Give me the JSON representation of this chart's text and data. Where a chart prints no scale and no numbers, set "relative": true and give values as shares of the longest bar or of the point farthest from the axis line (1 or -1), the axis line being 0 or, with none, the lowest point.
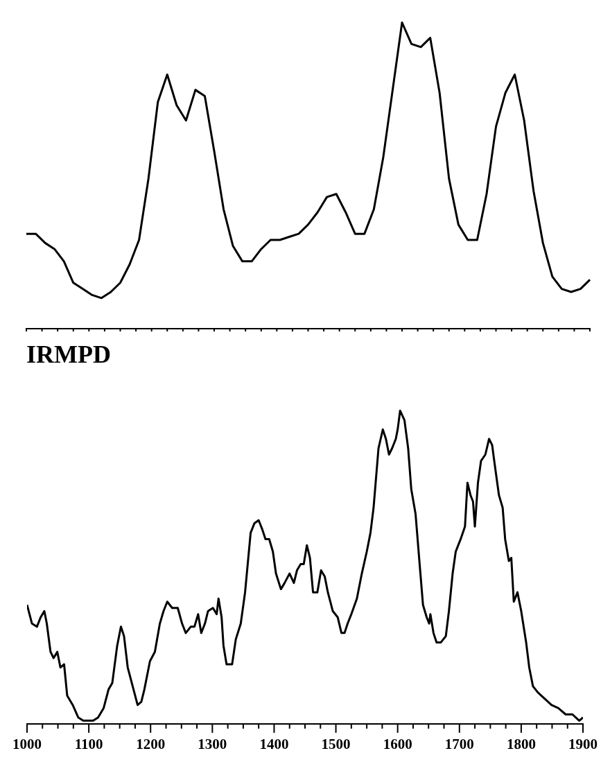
{
  "chart_data": [
    {
      "type": "line",
      "relative": true,
      "tick_labels": false,
      "categories": [
        null,
        null,
        null,
        null,
        null,
        null,
        null,
        null,
        null,
        null,
        null,
        null,
        null,
        null,
        null,
        null,
        null,
        null,
        null,
        null,
        null,
        null,
        null,
        null,
        null,
        null,
        null,
        null,
        null,
        null,
        null,
        null,
        null,
        null,
        null,
        null,
        null,
        null,
        null,
        null,
        null,
        null,
        null,
        null,
        null,
        null,
        null,
        null,
        null,
        null,
        null,
        null,
        null,
        null,
        null,
        null,
        null,
        null,
        null,
        null,
        null
      ],
      "series": [
        {
          "color": "#000000",
          "values": [
            0.31,
            0.31,
            0.28,
            0.26,
            0.22,
            0.15,
            0.13,
            0.11,
            0.1,
            0.12,
            0.15,
            0.21,
            0.29,
            0.49,
            0.74,
            0.83,
            0.73,
            0.68,
            0.78,
            0.76,
            0.58,
            0.39,
            0.27,
            0.22,
            0.22,
            0.26,
            0.29,
            0.29,
            0.3,
            0.31,
            0.34,
            0.38,
            0.43,
            0.44,
            0.38,
            0.31,
            0.31,
            0.39,
            0.56,
            0.78,
            1,
            0.93,
            0.92,
            0.95,
            0.77,
            0.49,
            0.34,
            0.29,
            0.29,
            0.44,
            0.66,
            0.77,
            0.83,
            0.68,
            0.45,
            0.28,
            0.17,
            0.13,
            0.12,
            0.13,
            0.16
          ]
        }
      ]
    },
    {
      "type": "line",
      "title": "IRMPD",
      "relative": true,
      "xlim": [
        1000,
        1900
      ],
      "xticks": [
        1000,
        {
          "value": 1025,
          "label": null
        },
        {
          "value": 1050,
          "label": null
        },
        {
          "value": 1075,
          "label": null
        },
        1100,
        {
          "value": 1125,
          "label": null
        },
        {
          "value": 1150,
          "label": null
        },
        {
          "value": 1175,
          "label": null
        },
        1200,
        {
          "value": 1225,
          "label": null
        },
        {
          "value": 1250,
          "label": null
        },
        {
          "value": 1275,
          "label": null
        },
        1300,
        {
          "value": 1325,
          "label": null
        },
        {
          "value": 1350,
          "label": null
        },
        {
          "value": 1375,
          "label": null
        },
        1400,
        {
          "value": 1425,
          "label": null
        },
        {
          "value": 1450,
          "label": null
        },
        {
          "value": 1475,
          "label": null
        },
        1500,
        {
          "value": 1525,
          "label": null
        },
        {
          "value": 1550,
          "label": null
        },
        {
          "value": 1575,
          "label": null
        },
        1600,
        {
          "value": 1625,
          "label": null
        },
        {
          "value": 1650,
          "label": null
        },
        {
          "value": 1675,
          "label": null
        },
        1700,
        {
          "value": 1725,
          "label": null
        },
        {
          "value": 1750,
          "label": null
        },
        {
          "value": 1775,
          "label": null
        },
        1800,
        {
          "value": 1825,
          "label": null
        },
        {
          "value": 1850,
          "label": null
        },
        {
          "value": 1875,
          "label": null
        },
        1900
      ],
      "series": [
        {
          "color": "#000000",
          "x": [
            1000,
            1008,
            1016,
            1022,
            1028,
            1032,
            1038,
            1043,
            1049,
            1054,
            1060,
            1065,
            1074,
            1083,
            1091,
            1100,
            1107,
            1115,
            1124,
            1132,
            1138,
            1146,
            1152,
            1157,
            1163,
            1171,
            1179,
            1185,
            1190,
            1199,
            1207,
            1215,
            1221,
            1227,
            1235,
            1244,
            1251,
            1257,
            1265,
            1271,
            1277,
            1282,
            1288,
            1293,
            1301,
            1307,
            1310,
            1315,
            1318,
            1323,
            1332,
            1338,
            1346,
            1353,
            1362,
            1368,
            1375,
            1381,
            1386,
            1392,
            1398,
            1403,
            1411,
            1417,
            1425,
            1432,
            1437,
            1443,
            1448,
            1453,
            1458,
            1463,
            1470,
            1476,
            1482,
            1487,
            1495,
            1503,
            1509,
            1514,
            1519,
            1525,
            1534,
            1542,
            1550,
            1556,
            1561,
            1569,
            1576,
            1581,
            1586,
            1591,
            1597,
            1600,
            1604,
            1611,
            1617,
            1622,
            1629,
            1636,
            1641,
            1647,
            1651,
            1653,
            1658,
            1663,
            1670,
            1678,
            1683,
            1689,
            1694,
            1702,
            1709,
            1713,
            1718,
            1722,
            1725,
            1730,
            1735,
            1742,
            1748,
            1753,
            1757,
            1764,
            1770,
            1774,
            1780,
            1784,
            1788,
            1794,
            1800,
            1808,
            1813,
            1819,
            1827,
            1838,
            1849,
            1860,
            1872,
            1883,
            1894,
            1900
          ],
          "values": [
            0.38,
            0.32,
            0.31,
            0.34,
            0.36,
            0.32,
            0.23,
            0.21,
            0.23,
            0.18,
            0.19,
            0.09,
            0.06,
            0.02,
            0.01,
            0.01,
            0.01,
            0.02,
            0.05,
            0.11,
            0.13,
            0.25,
            0.31,
            0.28,
            0.18,
            0.12,
            0.06,
            0.07,
            0.11,
            0.2,
            0.23,
            0.32,
            0.36,
            0.39,
            0.37,
            0.37,
            0.32,
            0.29,
            0.31,
            0.31,
            0.35,
            0.29,
            0.32,
            0.36,
            0.37,
            0.35,
            0.4,
            0.34,
            0.25,
            0.19,
            0.19,
            0.27,
            0.32,
            0.42,
            0.61,
            0.64,
            0.65,
            0.62,
            0.59,
            0.59,
            0.55,
            0.48,
            0.43,
            0.45,
            0.48,
            0.45,
            0.49,
            0.51,
            0.51,
            0.57,
            0.53,
            0.42,
            0.42,
            0.49,
            0.47,
            0.42,
            0.36,
            0.34,
            0.29,
            0.29,
            0.32,
            0.35,
            0.4,
            0.48,
            0.55,
            0.61,
            0.69,
            0.88,
            0.94,
            0.91,
            0.86,
            0.88,
            0.91,
            0.94,
            1,
            0.97,
            0.88,
            0.75,
            0.67,
            0.5,
            0.38,
            0.34,
            0.32,
            0.35,
            0.29,
            0.26,
            0.26,
            0.28,
            0.36,
            0.48,
            0.55,
            0.59,
            0.63,
            0.77,
            0.73,
            0.71,
            0.63,
            0.77,
            0.84,
            0.86,
            0.91,
            0.89,
            0.83,
            0.73,
            0.69,
            0.59,
            0.52,
            0.53,
            0.39,
            0.42,
            0.36,
            0.26,
            0.18,
            0.12,
            0.1,
            0.08,
            0.06,
            0.05,
            0.03,
            0.03,
            0.01,
            0.02
          ]
        }
      ]
    }
  ]
}
